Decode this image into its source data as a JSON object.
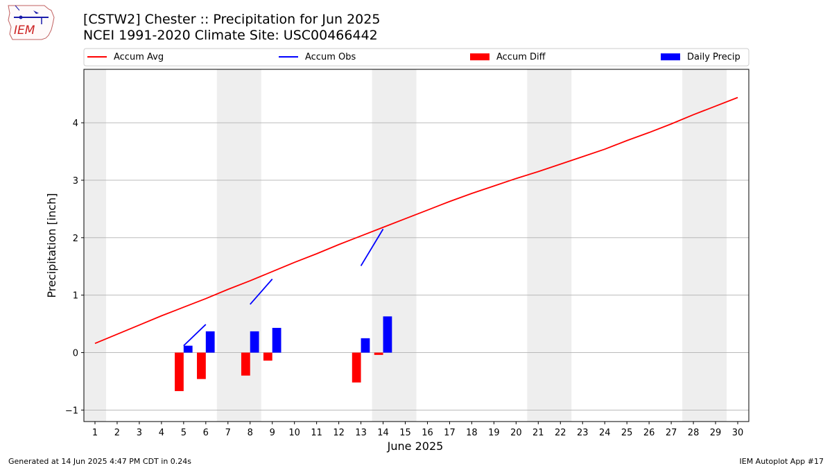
{
  "header": {
    "title_line1": "[CSTW2] Chester :: Precipitation for Jun 2025",
    "title_line2": "NCEI 1991-2020 Climate Site: USC00466442",
    "logo_text": "IEM"
  },
  "footer": {
    "left": "Generated at 14 Jun 2025 4:47 PM CDT in 0.24s",
    "right": "IEM Autoplot App #17"
  },
  "colors": {
    "accum_avg": "#ff0000",
    "accum_obs": "#0000ff",
    "accum_diff": "#ff0000",
    "daily_precip": "#0000ff",
    "weekend_shade": "#eeeeee",
    "grid": "#b0b0b0"
  },
  "chart_data": {
    "type": "bar",
    "xlabel": "June 2025",
    "ylabel": "Precipitation [inch]",
    "ylim": [
      -1.2,
      4.93
    ],
    "xlim": [
      0.5,
      30.5
    ],
    "yticks": [
      -1,
      0,
      1,
      2,
      3,
      4
    ],
    "xticks": [
      1,
      2,
      3,
      4,
      5,
      6,
      7,
      8,
      9,
      10,
      11,
      12,
      13,
      14,
      15,
      16,
      17,
      18,
      19,
      20,
      21,
      22,
      23,
      24,
      25,
      26,
      27,
      28,
      29,
      30
    ],
    "grid": "horizontal",
    "legend_position": "top",
    "weekend_spans": [
      [
        0.5,
        1.5
      ],
      [
        6.5,
        8.5
      ],
      [
        13.5,
        15.5
      ],
      [
        20.5,
        22.5
      ],
      [
        27.5,
        29.5
      ]
    ],
    "legend": [
      "Accum Avg",
      "Accum Obs",
      "Accum Diff",
      "Daily Precip"
    ],
    "accum_avg": {
      "name": "Accum Avg",
      "x": [
        1,
        2,
        3,
        4,
        5,
        6,
        7,
        8,
        9,
        10,
        11,
        12,
        13,
        14,
        15,
        16,
        17,
        18,
        19,
        20,
        21,
        22,
        23,
        24,
        25,
        26,
        27,
        28,
        29,
        30
      ],
      "y": [
        0.16,
        0.32,
        0.48,
        0.64,
        0.79,
        0.94,
        1.1,
        1.25,
        1.41,
        1.57,
        1.72,
        1.88,
        2.03,
        2.18,
        2.33,
        2.48,
        2.63,
        2.77,
        2.9,
        3.03,
        3.15,
        3.28,
        3.41,
        3.54,
        3.69,
        3.83,
        3.98,
        4.14,
        4.29,
        4.44
      ]
    },
    "accum_obs": {
      "name": "Accum Obs",
      "segments": [
        {
          "x": [
            5,
            6
          ],
          "y": [
            0.12,
            0.49
          ]
        },
        {
          "x": [
            8,
            9
          ],
          "y": [
            0.84,
            1.28
          ]
        },
        {
          "x": [
            13,
            14
          ],
          "y": [
            1.51,
            2.15
          ]
        }
      ]
    },
    "accum_diff": {
      "name": "Accum Diff",
      "x": [
        5,
        6,
        8,
        9,
        13,
        14
      ],
      "values": [
        -0.67,
        -0.46,
        -0.4,
        -0.14,
        -0.52,
        -0.04
      ]
    },
    "daily_precip": {
      "name": "Daily Precip",
      "x": [
        5,
        6,
        8,
        9,
        13,
        14
      ],
      "values": [
        0.12,
        0.37,
        0.37,
        0.43,
        0.25,
        0.63
      ]
    }
  }
}
